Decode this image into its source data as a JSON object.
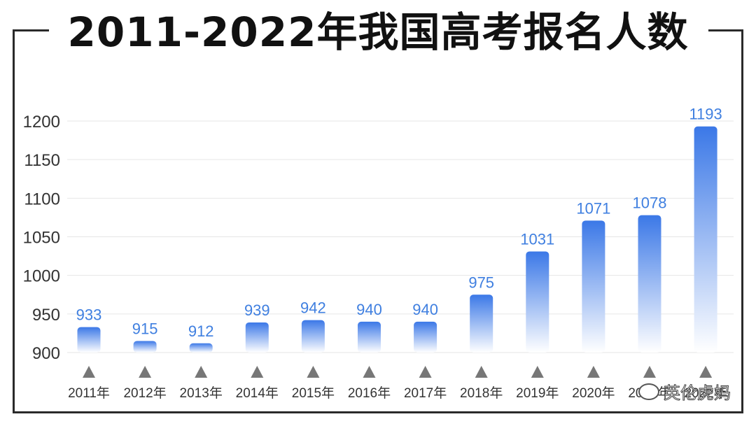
{
  "title": "2011-2022年我国高考报名人数",
  "watermark": "英伦虎妈",
  "colors": {
    "bar_top": "#3b78e7",
    "bar_bottom": "#ffffff",
    "value_label": "#3f7fe0",
    "axis_text": "#333333",
    "grid": "#e6e6e6",
    "marker": "#777777"
  },
  "chart_data": {
    "type": "bar",
    "title": "2011-2022年我国高考报名人数",
    "xlabel": "",
    "ylabel": "",
    "categories": [
      "2011年",
      "2012年",
      "2013年",
      "2014年",
      "2015年",
      "2016年",
      "2017年",
      "2018年",
      "2019年",
      "2020年",
      "2021年",
      "2022年"
    ],
    "values": [
      933,
      915,
      912,
      939,
      942,
      940,
      940,
      975,
      1031,
      1071,
      1078,
      1193
    ],
    "yticks": [
      900,
      950,
      1000,
      1050,
      1100,
      1150,
      1200
    ],
    "ylim": [
      900,
      1200
    ],
    "grid": true,
    "legend": "none",
    "data_labels": true
  }
}
